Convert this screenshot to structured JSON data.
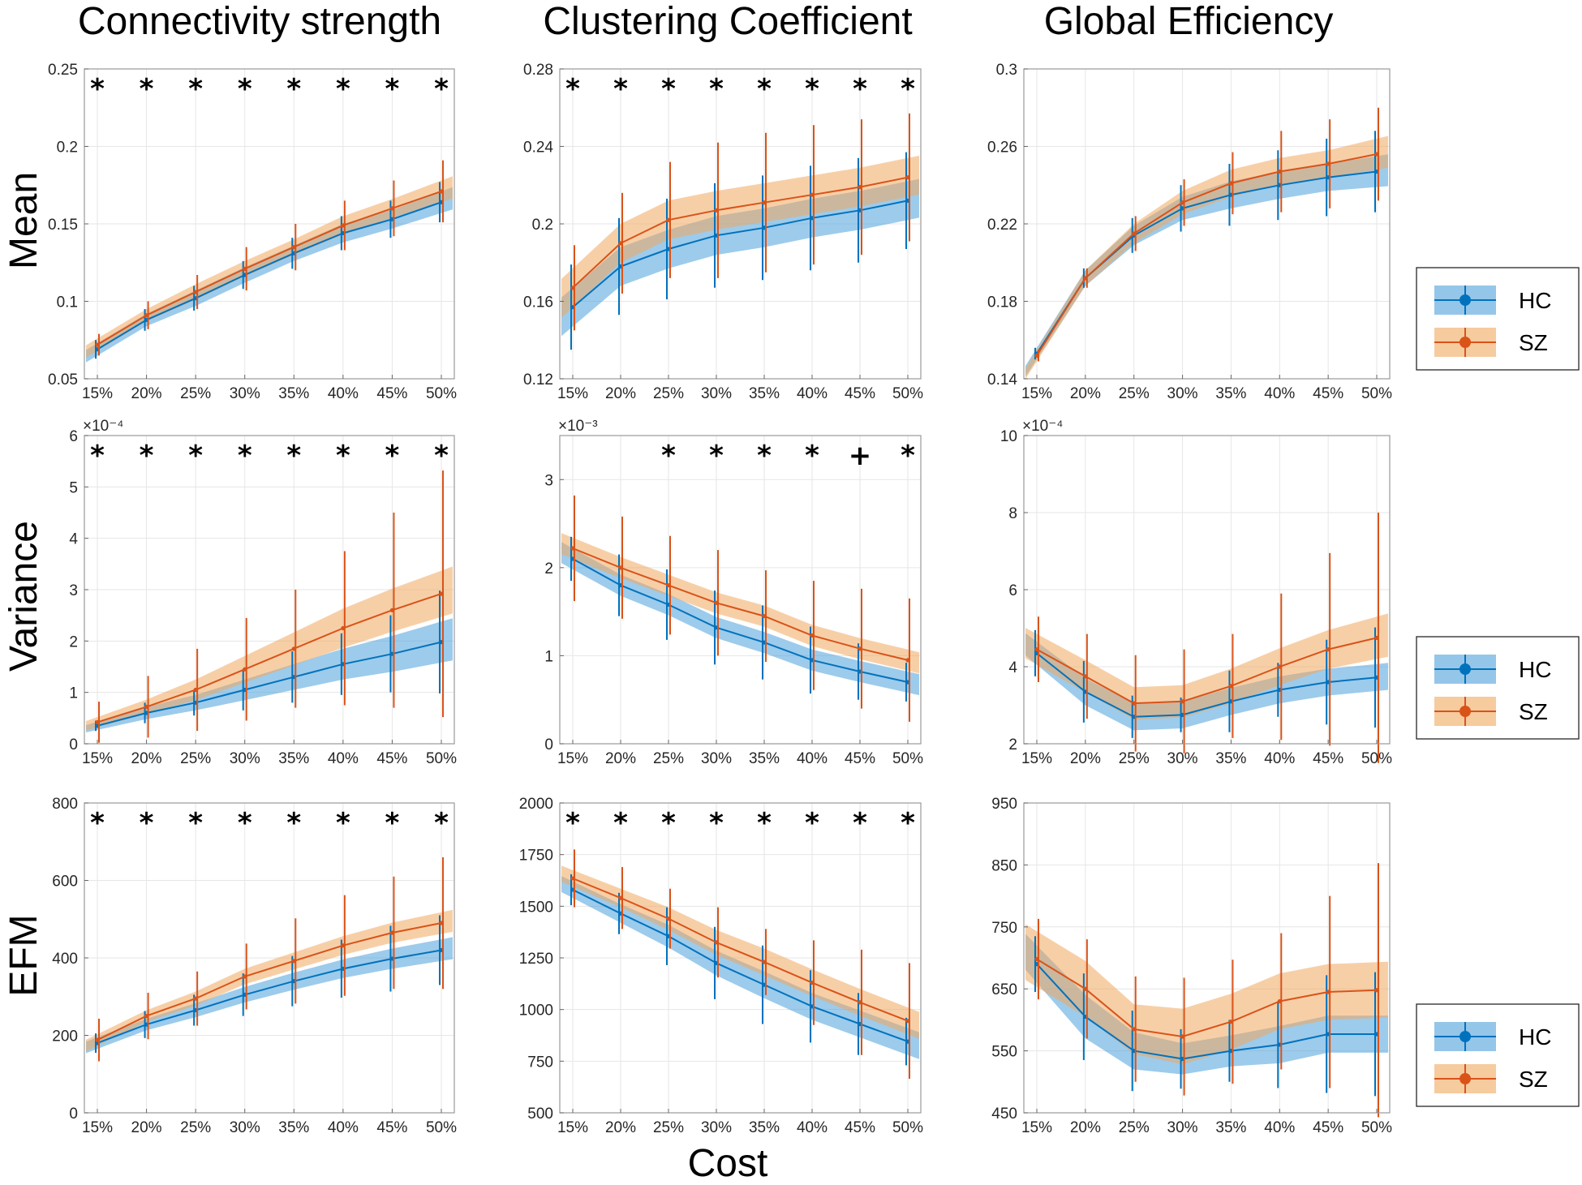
{
  "figure": {
    "column_titles": [
      "Connectivity strength",
      "Clustering Coefficient",
      "Global Efficiency"
    ],
    "row_labels": [
      "Mean",
      "Variance",
      "EFM"
    ],
    "xlabel": "Cost",
    "colors": {
      "HC": "#0072BD",
      "SZ": "#D95319",
      "HC_band": "#4DA0DB",
      "SZ_band": "#F0A85E"
    },
    "legend": [
      "HC",
      "SZ"
    ]
  },
  "chart_data": [
    {
      "type": "line",
      "row": 0,
      "col": 0,
      "categories": [
        "15%",
        "20%",
        "25%",
        "30%",
        "35%",
        "40%",
        "45%",
        "50%"
      ],
      "ylim": [
        0.05,
        0.25
      ],
      "yticks": [
        0.05,
        0.1,
        0.15,
        0.2,
        0.25
      ],
      "ytick_labels": [
        "0.05",
        "0.1",
        "0.15",
        "0.2",
        "0.25"
      ],
      "multiplier": "",
      "significance": [
        "*",
        "*",
        "*",
        "*",
        "*",
        "*",
        "*",
        "*"
      ],
      "series": [
        {
          "name": "HC",
          "values": [
            0.069,
            0.088,
            0.102,
            0.117,
            0.131,
            0.144,
            0.153,
            0.164
          ],
          "err": [
            0.006,
            0.007,
            0.008,
            0.009,
            0.01,
            0.011,
            0.012,
            0.013
          ],
          "band": [
            0.004,
            0.004,
            0.005,
            0.005,
            0.005,
            0.006,
            0.006,
            0.007
          ]
        },
        {
          "name": "SZ",
          "values": [
            0.072,
            0.091,
            0.106,
            0.121,
            0.135,
            0.149,
            0.16,
            0.171
          ],
          "err": [
            0.007,
            0.009,
            0.011,
            0.014,
            0.015,
            0.016,
            0.018,
            0.02
          ],
          "band": [
            0.004,
            0.004,
            0.005,
            0.005,
            0.005,
            0.006,
            0.006,
            0.007
          ]
        }
      ]
    },
    {
      "type": "line",
      "row": 0,
      "col": 1,
      "categories": [
        "15%",
        "20%",
        "25%",
        "30%",
        "35%",
        "40%",
        "45%",
        "50%"
      ],
      "ylim": [
        0.12,
        0.28
      ],
      "yticks": [
        0.12,
        0.16,
        0.2,
        0.24,
        0.28
      ],
      "ytick_labels": [
        "0.12",
        "0.16",
        "0.2",
        "0.24",
        "0.28"
      ],
      "multiplier": "",
      "significance": [
        "*",
        "*",
        "*",
        "*",
        "*",
        "*",
        "*",
        "*"
      ],
      "series": [
        {
          "name": "HC",
          "values": [
            0.157,
            0.178,
            0.187,
            0.194,
            0.198,
            0.203,
            0.207,
            0.212
          ],
          "err": [
            0.022,
            0.025,
            0.026,
            0.027,
            0.027,
            0.027,
            0.027,
            0.025
          ],
          "band": [
            0.01,
            0.01,
            0.01,
            0.01,
            0.01,
            0.01,
            0.01,
            0.01
          ]
        },
        {
          "name": "SZ",
          "values": [
            0.167,
            0.19,
            0.202,
            0.207,
            0.211,
            0.215,
            0.219,
            0.224
          ],
          "err": [
            0.022,
            0.026,
            0.03,
            0.035,
            0.036,
            0.036,
            0.035,
            0.033
          ],
          "band": [
            0.01,
            0.01,
            0.01,
            0.01,
            0.01,
            0.01,
            0.01,
            0.01
          ]
        }
      ]
    },
    {
      "type": "line",
      "row": 0,
      "col": 2,
      "categories": [
        "15%",
        "20%",
        "25%",
        "30%",
        "35%",
        "40%",
        "45%",
        "50%"
      ],
      "ylim": [
        0.14,
        0.3
      ],
      "yticks": [
        0.14,
        0.18,
        0.22,
        0.26,
        0.3
      ],
      "ytick_labels": [
        "0.14",
        "0.18",
        "0.22",
        "0.26",
        "0.3"
      ],
      "multiplier": "",
      "significance": [],
      "series": [
        {
          "name": "HC",
          "values": [
            0.153,
            0.192,
            0.214,
            0.228,
            0.235,
            0.24,
            0.244,
            0.247
          ],
          "err": [
            0.003,
            0.005,
            0.009,
            0.012,
            0.016,
            0.018,
            0.02,
            0.021
          ],
          "band": [
            0.003,
            0.004,
            0.005,
            0.006,
            0.007,
            0.007,
            0.007,
            0.008
          ]
        },
        {
          "name": "SZ",
          "values": [
            0.152,
            0.192,
            0.215,
            0.231,
            0.241,
            0.247,
            0.251,
            0.256
          ],
          "err": [
            0.003,
            0.005,
            0.009,
            0.012,
            0.016,
            0.021,
            0.023,
            0.024
          ],
          "band": [
            0.003,
            0.004,
            0.005,
            0.006,
            0.007,
            0.007,
            0.007,
            0.008
          ]
        }
      ]
    },
    {
      "type": "line",
      "row": 1,
      "col": 0,
      "categories": [
        "15%",
        "20%",
        "25%",
        "30%",
        "35%",
        "40%",
        "45%",
        "50%"
      ],
      "ylim": [
        0,
        6
      ],
      "yticks": [
        0,
        1,
        2,
        3,
        4,
        5,
        6
      ],
      "ytick_labels": [
        "0",
        "1",
        "2",
        "3",
        "4",
        "5",
        "6"
      ],
      "multiplier": "×10⁻⁴",
      "significance": [
        "*",
        "*",
        "*",
        "*",
        "*",
        "*",
        "*",
        "*"
      ],
      "series": [
        {
          "name": "HC",
          "values": [
            0.35,
            0.6,
            0.8,
            1.05,
            1.3,
            1.55,
            1.75,
            1.98
          ],
          "err": [
            0.1,
            0.2,
            0.25,
            0.4,
            0.5,
            0.6,
            0.75,
            1.0
          ],
          "band": [
            0.08,
            0.12,
            0.15,
            0.2,
            0.25,
            0.3,
            0.35,
            0.4
          ]
        },
        {
          "name": "SZ",
          "values": [
            0.42,
            0.72,
            1.05,
            1.45,
            1.85,
            2.25,
            2.6,
            2.92
          ],
          "err": [
            0.4,
            0.6,
            0.8,
            1.0,
            1.15,
            1.5,
            1.9,
            2.4
          ],
          "band": [
            0.1,
            0.14,
            0.2,
            0.26,
            0.32,
            0.38,
            0.42,
            0.45
          ]
        }
      ]
    },
    {
      "type": "line",
      "row": 1,
      "col": 1,
      "categories": [
        "15%",
        "20%",
        "25%",
        "30%",
        "35%",
        "40%",
        "45%",
        "50%"
      ],
      "ylim": [
        0,
        3.5
      ],
      "yticks": [
        0,
        1,
        2,
        3
      ],
      "ytick_labels": [
        "0",
        "1",
        "2",
        "3"
      ],
      "multiplier": "×10⁻³",
      "significance": [
        "",
        "",
        "*",
        "*",
        "*",
        "*",
        "+",
        "*"
      ],
      "series": [
        {
          "name": "HC",
          "values": [
            2.1,
            1.8,
            1.58,
            1.32,
            1.15,
            0.95,
            0.82,
            0.7
          ],
          "err": [
            0.25,
            0.35,
            0.4,
            0.42,
            0.42,
            0.38,
            0.32,
            0.22
          ],
          "band": [
            0.12,
            0.12,
            0.12,
            0.12,
            0.12,
            0.12,
            0.12,
            0.12
          ]
        },
        {
          "name": "SZ",
          "values": [
            2.22,
            2.0,
            1.8,
            1.6,
            1.45,
            1.23,
            1.08,
            0.95
          ],
          "err": [
            0.6,
            0.58,
            0.56,
            0.6,
            0.52,
            0.62,
            0.68,
            0.7
          ],
          "band": [
            0.12,
            0.12,
            0.12,
            0.12,
            0.12,
            0.12,
            0.12,
            0.12
          ]
        }
      ]
    },
    {
      "type": "line",
      "row": 1,
      "col": 2,
      "categories": [
        "15%",
        "20%",
        "25%",
        "30%",
        "35%",
        "40%",
        "45%",
        "50%"
      ],
      "ylim": [
        2,
        10
      ],
      "yticks": [
        2,
        4,
        6,
        8,
        10
      ],
      "ytick_labels": [
        "2",
        "4",
        "6",
        "8",
        "10"
      ],
      "multiplier": "×10⁻⁴",
      "significance": [],
      "series": [
        {
          "name": "HC",
          "values": [
            4.35,
            3.35,
            2.7,
            2.75,
            3.1,
            3.4,
            3.6,
            3.72
          ],
          "err": [
            0.6,
            0.8,
            0.55,
            0.45,
            0.8,
            0.7,
            1.1,
            1.3
          ],
          "band": [
            0.3,
            0.35,
            0.35,
            0.35,
            0.35,
            0.35,
            0.35,
            0.35
          ]
        },
        {
          "name": "SZ",
          "values": [
            4.45,
            3.75,
            3.05,
            3.1,
            3.5,
            4.0,
            4.45,
            4.75
          ],
          "err": [
            0.85,
            1.1,
            1.25,
            1.35,
            1.35,
            1.9,
            2.5,
            3.25
          ],
          "band": [
            0.4,
            0.42,
            0.42,
            0.42,
            0.45,
            0.48,
            0.5,
            0.55
          ]
        }
      ]
    },
    {
      "type": "line",
      "row": 2,
      "col": 0,
      "categories": [
        "15%",
        "20%",
        "25%",
        "30%",
        "35%",
        "40%",
        "45%",
        "50%"
      ],
      "ylim": [
        0,
        800
      ],
      "yticks": [
        0,
        200,
        400,
        600,
        800
      ],
      "ytick_labels": [
        "0",
        "200",
        "400",
        "600",
        "800"
      ],
      "multiplier": "",
      "significance": [
        "*",
        "*",
        "*",
        "*",
        "*",
        "*",
        "*",
        "*"
      ],
      "series": [
        {
          "name": "HC",
          "values": [
            180,
            228,
            265,
            305,
            340,
            372,
            398,
            420
          ],
          "err": [
            25,
            35,
            40,
            55,
            65,
            75,
            85,
            90
          ],
          "band": [
            15,
            15,
            18,
            20,
            22,
            24,
            26,
            28
          ]
        },
        {
          "name": "SZ",
          "values": [
            188,
            250,
            295,
            352,
            392,
            432,
            465,
            490
          ],
          "err": [
            55,
            60,
            70,
            85,
            110,
            130,
            145,
            170
          ],
          "band": [
            15,
            15,
            18,
            20,
            22,
            24,
            26,
            28
          ]
        }
      ]
    },
    {
      "type": "line",
      "row": 2,
      "col": 1,
      "categories": [
        "15%",
        "20%",
        "25%",
        "30%",
        "35%",
        "40%",
        "45%",
        "50%"
      ],
      "ylim": [
        500,
        2000
      ],
      "yticks": [
        500,
        750,
        1000,
        1250,
        1500,
        1750,
        2000
      ],
      "ytick_labels": [
        "500",
        "750",
        "1000",
        "1250",
        "1500",
        "1750",
        "2000"
      ],
      "multiplier": "",
      "significance": [
        "*",
        "*",
        "*",
        "*",
        "*",
        "*",
        "*",
        "*"
      ],
      "series": [
        {
          "name": "HC",
          "values": [
            1580,
            1465,
            1355,
            1225,
            1120,
            1015,
            930,
            845
          ],
          "err": [
            75,
            100,
            140,
            175,
            190,
            175,
            150,
            115
          ],
          "band": [
            40,
            45,
            55,
            60,
            65,
            65,
            65,
            65
          ]
        },
        {
          "name": "SZ",
          "values": [
            1635,
            1540,
            1440,
            1325,
            1230,
            1130,
            1035,
            945
          ],
          "err": [
            140,
            150,
            145,
            170,
            160,
            205,
            255,
            280
          ],
          "band": [
            40,
            45,
            55,
            60,
            65,
            65,
            65,
            65
          ]
        }
      ]
    },
    {
      "type": "line",
      "row": 2,
      "col": 2,
      "categories": [
        "15%",
        "20%",
        "25%",
        "30%",
        "35%",
        "40%",
        "45%",
        "50%"
      ],
      "ylim": [
        450,
        950
      ],
      "yticks": [
        450,
        550,
        650,
        750,
        850,
        950
      ],
      "ytick_labels": [
        "450",
        "550",
        "650",
        "750",
        "850",
        "950"
      ],
      "multiplier": "",
      "significance": [],
      "series": [
        {
          "name": "HC",
          "values": [
            690,
            605,
            550,
            537,
            550,
            560,
            577,
            577
          ],
          "err": [
            45,
            70,
            65,
            48,
            50,
            70,
            95,
            100
          ],
          "band": [
            30,
            35,
            30,
            25,
            25,
            30,
            30,
            30
          ]
        },
        {
          "name": "SZ",
          "values": [
            698,
            650,
            585,
            573,
            597,
            630,
            645,
            648
          ],
          "err": [
            65,
            80,
            85,
            95,
            100,
            110,
            155,
            205
          ],
          "band": [
            45,
            45,
            40,
            45,
            45,
            45,
            45,
            45
          ]
        }
      ]
    }
  ]
}
